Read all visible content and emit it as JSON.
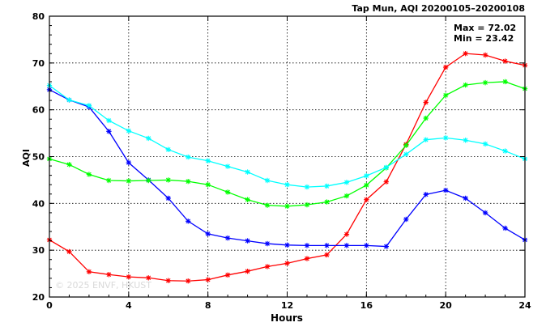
{
  "chart_data": {
    "type": "line",
    "title": "Tap Mun, AQI 20200105–20200108",
    "xlabel": "Hours",
    "ylabel": "AQI",
    "xlim": [
      0,
      24
    ],
    "ylim": [
      20,
      80
    ],
    "x_ticks": [
      "0",
      "4",
      "8",
      "12",
      "16",
      "20",
      "24"
    ],
    "y_ticks": [
      "20",
      "30",
      "40",
      "50",
      "60",
      "70",
      "80"
    ],
    "grid": true,
    "annotations": {
      "max": "Max = 72.02",
      "min": "Min = 23.42"
    },
    "watermark": "© 2025 ENVF, HKUST",
    "x": [
      0,
      1,
      2,
      3,
      4,
      5,
      6,
      7,
      8,
      9,
      10,
      11,
      12,
      13,
      14,
      15,
      16,
      17,
      18,
      19,
      20,
      21,
      22,
      23,
      24
    ],
    "series": [
      {
        "color": "#ff0000",
        "values": [
          32.2,
          29.7,
          25.4,
          24.8,
          24.3,
          24.1,
          23.5,
          23.42,
          23.7,
          24.7,
          25.5,
          26.5,
          27.2,
          28.2,
          29.0,
          33.4,
          40.8,
          44.6,
          52.6,
          61.6,
          69.1,
          72.02,
          71.7,
          70.4,
          69.5
        ]
      },
      {
        "color": "#0000ff",
        "values": [
          64.3,
          62.1,
          60.6,
          55.4,
          48.7,
          45.0,
          41.1,
          36.2,
          33.5,
          32.6,
          32.0,
          31.4,
          31.1,
          31.0,
          31.0,
          31.0,
          31.0,
          30.8,
          36.6,
          41.9,
          42.8,
          41.1,
          38.0,
          34.7,
          32.2
        ]
      },
      {
        "color": "#00ff00",
        "values": [
          49.5,
          48.3,
          46.2,
          44.9,
          44.8,
          44.9,
          45.0,
          44.7,
          44.0,
          42.4,
          40.8,
          39.6,
          39.4,
          39.7,
          40.3,
          41.6,
          43.9,
          47.6,
          52.4,
          58.2,
          63.1,
          65.3,
          65.8,
          66.0,
          64.5
        ]
      },
      {
        "color": "#00ffff",
        "values": [
          65.2,
          62.1,
          60.9,
          57.7,
          55.5,
          53.9,
          51.5,
          49.9,
          49.1,
          47.9,
          46.7,
          44.9,
          44.0,
          43.5,
          43.7,
          44.5,
          45.9,
          47.7,
          50.5,
          53.6,
          54.0,
          53.5,
          52.7,
          51.2,
          49.5
        ]
      }
    ]
  }
}
